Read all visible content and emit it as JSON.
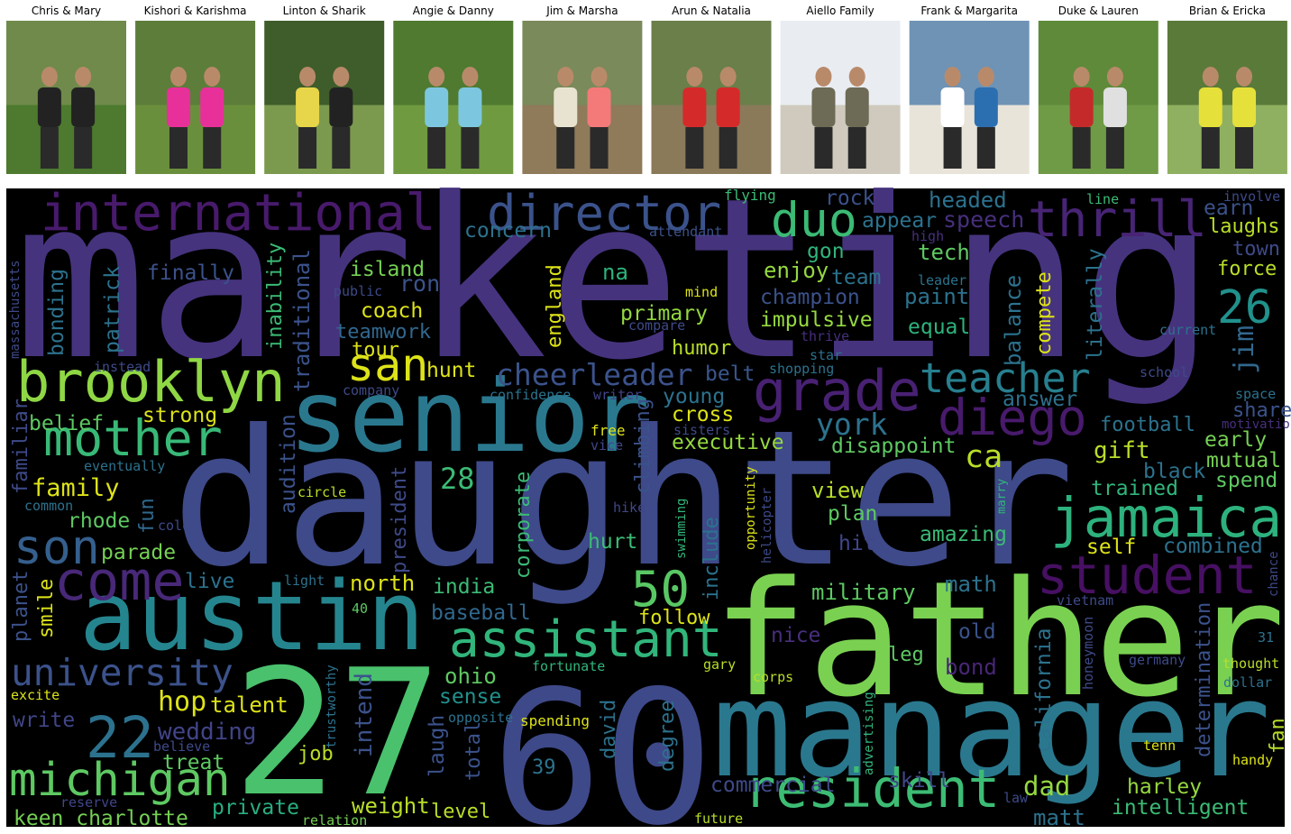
{
  "panels": [
    {
      "name": "Chris & Mary"
    },
    {
      "name": "Kishori & Karishma"
    },
    {
      "name": "Linton & Sharik"
    },
    {
      "name": "Angie & Danny"
    },
    {
      "name": "Jim & Marsha"
    },
    {
      "name": "Arun & Natalia"
    },
    {
      "name": "Aiello Family"
    },
    {
      "name": "Frank & Margarita"
    },
    {
      "name": "Duke & Lauren"
    },
    {
      "name": "Brian & Ericka"
    }
  ],
  "word_cloud": {
    "background": "#000000",
    "words": [
      {
        "text": "marketing",
        "color": "#46337e"
      },
      {
        "text": "daughter",
        "color": "#3e4a89"
      },
      {
        "text": "father",
        "color": "#7ad151"
      },
      {
        "text": "manager",
        "color": "#2a788e"
      },
      {
        "text": "27",
        "color": "#4ac16d"
      },
      {
        "text": "60",
        "color": "#3e4989"
      },
      {
        "text": "senior",
        "color": "#2a788e"
      },
      {
        "text": "austin",
        "color": "#25858e"
      },
      {
        "text": "international",
        "color": "#481a6c"
      },
      {
        "text": "director",
        "color": "#3b528b"
      },
      {
        "text": "duo",
        "color": "#3bbb75"
      },
      {
        "text": "thrill",
        "color": "#482475"
      },
      {
        "text": "brooklyn",
        "color": "#8fd744"
      },
      {
        "text": "mother",
        "color": "#38b977"
      },
      {
        "text": "son",
        "color": "#355f8d"
      },
      {
        "text": "come",
        "color": "#482878"
      },
      {
        "text": "grade",
        "color": "#482173"
      },
      {
        "text": "teacher",
        "color": "#277f8e"
      },
      {
        "text": "diego",
        "color": "#481a6c"
      },
      {
        "text": "jamaica",
        "color": "#2db27d"
      },
      {
        "text": "student",
        "color": "#471063"
      },
      {
        "text": "resident",
        "color": "#3dbc74"
      },
      {
        "text": "assistant",
        "color": "#31b57b"
      },
      {
        "text": "50",
        "color": "#59c864"
      },
      {
        "text": "university",
        "color": "#3b528b"
      },
      {
        "text": "22",
        "color": "#2c728e"
      },
      {
        "text": "michigan",
        "color": "#5ec962"
      },
      {
        "text": "san",
        "color": "#dde318"
      },
      {
        "text": "cheerleader",
        "color": "#3b528b"
      },
      {
        "text": "york",
        "color": "#2c728e"
      },
      {
        "text": "ca",
        "color": "#b8de29"
      },
      {
        "text": "28",
        "color": "#3bbb75"
      },
      {
        "text": "26",
        "color": "#21918c"
      },
      {
        "text": "jim",
        "color": "#31688e"
      },
      {
        "text": "family",
        "color": "#dde318"
      },
      {
        "text": "wedding",
        "color": "#414487"
      },
      {
        "text": "hop",
        "color": "#dde318"
      },
      {
        "text": "talent",
        "color": "#dde318"
      },
      {
        "text": "keen charlotte",
        "color": "#75d054"
      },
      {
        "text": "treat",
        "color": "#5ec962"
      },
      {
        "text": "private",
        "color": "#29af7f"
      },
      {
        "text": "weight",
        "color": "#b8de29"
      },
      {
        "text": "level",
        "color": "#b8de29"
      },
      {
        "text": "write",
        "color": "#404688"
      },
      {
        "text": "belt",
        "color": "#39568c"
      },
      {
        "text": "hunt",
        "color": "#dde318"
      },
      {
        "text": "tour",
        "color": "#dde318"
      },
      {
        "text": "humor",
        "color": "#b8de29"
      },
      {
        "text": "primary",
        "color": "#95d840"
      },
      {
        "text": "coach",
        "color": "#dde318"
      },
      {
        "text": "teamwork",
        "color": "#31688e"
      },
      {
        "text": "island",
        "color": "#75d054"
      },
      {
        "text": "ron",
        "color": "#3b528b"
      },
      {
        "text": "finally",
        "color": "#3b528b"
      },
      {
        "text": "na",
        "color": "#2db27d"
      },
      {
        "text": "concern",
        "color": "#2c728e"
      },
      {
        "text": "appear",
        "color": "#2c728e"
      },
      {
        "text": "speech",
        "color": "#472f7d"
      },
      {
        "text": "headed",
        "color": "#2c728e"
      },
      {
        "text": "rock",
        "color": "#3b528b"
      },
      {
        "text": "earn",
        "color": "#3b528b"
      },
      {
        "text": "laughs",
        "color": "#b8de29"
      },
      {
        "text": "town",
        "color": "#3e4a89"
      },
      {
        "text": "force",
        "color": "#b8de29"
      },
      {
        "text": "gon",
        "color": "#31b57b"
      },
      {
        "text": "tech",
        "color": "#5ec962"
      },
      {
        "text": "enjoy",
        "color": "#95d840"
      },
      {
        "text": "team",
        "color": "#2c728e"
      },
      {
        "text": "champion",
        "color": "#3b528b"
      },
      {
        "text": "paint",
        "color": "#2c728e"
      },
      {
        "text": "impulsive",
        "color": "#95d840"
      },
      {
        "text": "equal",
        "color": "#2db27d"
      },
      {
        "text": "answer",
        "color": "#2c728e"
      },
      {
        "text": "young",
        "color": "#2c728e"
      },
      {
        "text": "cross",
        "color": "#dde318"
      },
      {
        "text": "executive",
        "color": "#95d840"
      },
      {
        "text": "disappoint",
        "color": "#5ec962"
      },
      {
        "text": "football",
        "color": "#2c728e"
      },
      {
        "text": "gift",
        "color": "#b8de29"
      },
      {
        "text": "early",
        "color": "#75d054"
      },
      {
        "text": "mutual",
        "color": "#75d054"
      },
      {
        "text": "spend",
        "color": "#5ec962"
      },
      {
        "text": "black",
        "color": "#2c728e"
      },
      {
        "text": "trained",
        "color": "#31b57b"
      },
      {
        "text": "strong",
        "color": "#dde318"
      },
      {
        "text": "belief",
        "color": "#5ec962"
      },
      {
        "text": "rhode",
        "color": "#5ec962"
      },
      {
        "text": "parade",
        "color": "#75d054"
      },
      {
        "text": "live",
        "color": "#2c728e"
      },
      {
        "text": "north",
        "color": "#dde318"
      },
      {
        "text": "india",
        "color": "#3bbb75"
      },
      {
        "text": "baseball",
        "color": "#31688e"
      },
      {
        "text": "hurt",
        "color": "#3bbb75"
      },
      {
        "text": "follow",
        "color": "#dde318"
      },
      {
        "text": "view",
        "color": "#b8de29"
      },
      {
        "text": "plan",
        "color": "#5ec962"
      },
      {
        "text": "hit",
        "color": "#404688"
      },
      {
        "text": "amazing",
        "color": "#3bbb75"
      },
      {
        "text": "self",
        "color": "#dde318"
      },
      {
        "text": "combined",
        "color": "#2c728e"
      },
      {
        "text": "military",
        "color": "#5ec962"
      },
      {
        "text": "math",
        "color": "#2c728e"
      },
      {
        "text": "nice",
        "color": "#472f7d"
      },
      {
        "text": "old",
        "color": "#3b528b"
      },
      {
        "text": "leg",
        "color": "#5ec962"
      },
      {
        "text": "bond",
        "color": "#482677"
      },
      {
        "text": "dad",
        "color": "#95d840"
      },
      {
        "text": "harley",
        "color": "#95d840"
      },
      {
        "text": "intelligent",
        "color": "#3bbb75"
      },
      {
        "text": "matt",
        "color": "#2c728e"
      },
      {
        "text": "skill",
        "color": "#404688"
      },
      {
        "text": "commercial",
        "color": "#3e4a89"
      },
      {
        "text": "ohio",
        "color": "#5ec962"
      },
      {
        "text": "sense",
        "color": "#21918c"
      },
      {
        "text": "job",
        "color": "#b8de29"
      },
      {
        "text": "patrick",
        "color": "#2c728e"
      },
      {
        "text": "bonding",
        "color": "#2c728e"
      },
      {
        "text": "inability",
        "color": "#3bbb75"
      },
      {
        "text": "traditional",
        "color": "#3b528b"
      },
      {
        "text": "england",
        "color": "#dde318"
      },
      {
        "text": "compete",
        "color": "#dde318"
      },
      {
        "text": "balance",
        "color": "#2c728e"
      },
      {
        "text": "literally",
        "color": "#2c728e"
      },
      {
        "text": "audition",
        "color": "#3b528b"
      },
      {
        "text": "president",
        "color": "#3e4a89"
      },
      {
        "text": "corporate",
        "color": "#3bbb75"
      },
      {
        "text": "climbing",
        "color": "#3b528b"
      },
      {
        "text": "include",
        "color": "#2c728e"
      },
      {
        "text": "california",
        "color": "#2c728e"
      },
      {
        "text": "determination",
        "color": "#3b528b"
      },
      {
        "text": "intend",
        "color": "#3b528b"
      },
      {
        "text": "laugh",
        "color": "#3b528b"
      },
      {
        "text": "total",
        "color": "#3b528b"
      },
      {
        "text": "david",
        "color": "#2c728e"
      },
      {
        "text": "degree",
        "color": "#2c728e"
      },
      {
        "text": "fan",
        "color": "#b8de29"
      },
      {
        "text": "familiar",
        "color": "#3e4a89"
      },
      {
        "text": "planet",
        "color": "#3b528b"
      },
      {
        "text": "smile",
        "color": "#dde318"
      },
      {
        "text": "fun",
        "color": "#31688e"
      },
      {
        "text": "flying",
        "color": "#3bbb75"
      },
      {
        "text": "attendant",
        "color": "#3b528b"
      },
      {
        "text": "public",
        "color": "#3e4a89"
      },
      {
        "text": "massachusetts",
        "color": "#3e4a89"
      },
      {
        "text": "mind",
        "color": "#dde318"
      },
      {
        "text": "compare",
        "color": "#3e4a89"
      },
      {
        "text": "thrive",
        "color": "#472f7d"
      },
      {
        "text": "star",
        "color": "#2c728e"
      },
      {
        "text": "shopping",
        "color": "#2c728e"
      },
      {
        "text": "instead",
        "color": "#3e4a89"
      },
      {
        "text": "company",
        "color": "#3e4a89"
      },
      {
        "text": "confidence",
        "color": "#2c728e"
      },
      {
        "text": "writer",
        "color": "#414487"
      },
      {
        "text": "free",
        "color": "#dde318"
      },
      {
        "text": "vice",
        "color": "#404688"
      },
      {
        "text": "sisters",
        "color": "#3e4a89"
      },
      {
        "text": "eventually",
        "color": "#2c728e"
      },
      {
        "text": "circle",
        "color": "#b8de29"
      },
      {
        "text": "common",
        "color": "#2c728e"
      },
      {
        "text": "color",
        "color": "#3e4a89"
      },
      {
        "text": "hike",
        "color": "#404688"
      },
      {
        "text": "light",
        "color": "#2c728e"
      },
      {
        "text": "40",
        "color": "#5ec962"
      },
      {
        "text": "excite",
        "color": "#dde318"
      },
      {
        "text": "believe",
        "color": "#3e4a89"
      },
      {
        "text": "reserve",
        "color": "#404688"
      },
      {
        "text": "relation",
        "color": "#75d054"
      },
      {
        "text": "fortunate",
        "color": "#31b57b"
      },
      {
        "text": "gary",
        "color": "#b8de29"
      },
      {
        "text": "corps",
        "color": "#b8de29"
      },
      {
        "text": "spending",
        "color": "#dde318"
      },
      {
        "text": "39",
        "color": "#2c728e"
      },
      {
        "text": "opposite",
        "color": "#2c728e"
      },
      {
        "text": "future",
        "color": "#b8de29"
      },
      {
        "text": "law",
        "color": "#3e4a89"
      },
      {
        "text": "tenn",
        "color": "#dde318"
      },
      {
        "text": "handy",
        "color": "#dde318"
      },
      {
        "text": "dollar",
        "color": "#2c728e"
      },
      {
        "text": "thought",
        "color": "#b8de29"
      },
      {
        "text": "31",
        "color": "#2c728e"
      },
      {
        "text": "germany",
        "color": "#3e4a89"
      },
      {
        "text": "vietnam",
        "color": "#3e4a89"
      },
      {
        "text": "current",
        "color": "#2c728e"
      },
      {
        "text": "school",
        "color": "#3e4a89"
      },
      {
        "text": "space",
        "color": "#2c728e"
      },
      {
        "text": "share",
        "color": "#3b528b"
      },
      {
        "text": "motivation",
        "color": "#472f7d"
      },
      {
        "text": "chance",
        "color": "#3e4a89"
      },
      {
        "text": "involve",
        "color": "#3e4a89"
      },
      {
        "text": "line",
        "color": "#3bbb75"
      },
      {
        "text": "high",
        "color": "#472f7d"
      },
      {
        "text": "leader",
        "color": "#2c728e"
      },
      {
        "text": "honeymoon",
        "color": "#3e4a89"
      },
      {
        "text": "trustworthy",
        "color": "#2c728e"
      },
      {
        "text": "advertising",
        "color": "#31b57b"
      },
      {
        "text": "helicopter",
        "color": "#3e4a89"
      },
      {
        "text": "opportunity",
        "color": "#dde318"
      },
      {
        "text": "swimming",
        "color": "#31b57b"
      },
      {
        "text": "marry",
        "color": "#31b57b"
      }
    ]
  }
}
